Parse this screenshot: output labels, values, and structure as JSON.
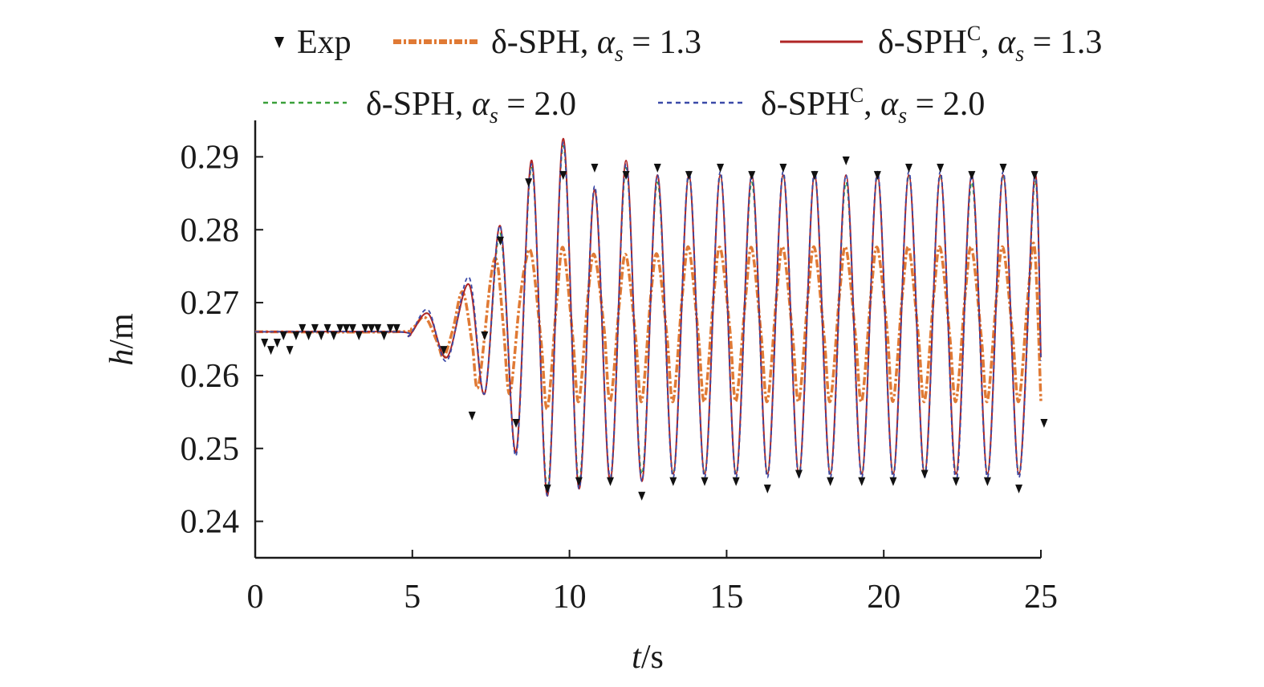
{
  "chart_data": {
    "type": "line",
    "x_axis": {
      "label_var": "t",
      "label_unit": "/s",
      "range": [
        0,
        25
      ],
      "ticks": [
        0,
        5,
        10,
        15,
        20,
        25
      ],
      "tick_labels": [
        "0",
        "5",
        "10",
        "15",
        "20",
        "25"
      ]
    },
    "y_axis": {
      "label_var": "h",
      "label_unit": "/m",
      "range": [
        0.235,
        0.295
      ],
      "ticks": [
        0.24,
        0.25,
        0.26,
        0.27,
        0.28,
        0.29
      ],
      "tick_labels": [
        "0.24",
        "0.25",
        "0.26",
        "0.27",
        "0.28",
        "0.29"
      ]
    },
    "grid": false,
    "legend_position": "top",
    "legend": [
      {
        "base": "Exp",
        "alpha": "",
        "marker": "triangle-down",
        "color": "#111111"
      },
      {
        "base": "δ-SPH",
        "alpha": "1.3",
        "style": "dash-dot",
        "color": "#e07a35"
      },
      {
        "base": "δ-SPH",
        "sup": "C",
        "alpha": "1.3",
        "style": "solid",
        "color": "#b02525"
      },
      {
        "base": "δ-SPH",
        "alpha": "2.0",
        "style": "dashed",
        "color": "#3aa03a"
      },
      {
        "base": "δ-SPH",
        "sup": "C",
        "alpha": "2.0",
        "style": "dashed",
        "color": "#3b4aa8"
      }
    ],
    "series": [
      {
        "name": "Exp",
        "kind": "markers",
        "points": [
          [
            0.3,
            0.2645
          ],
          [
            0.5,
            0.2635
          ],
          [
            0.7,
            0.2645
          ],
          [
            0.9,
            0.2655
          ],
          [
            1.1,
            0.2635
          ],
          [
            1.3,
            0.2655
          ],
          [
            1.5,
            0.2665
          ],
          [
            1.7,
            0.2655
          ],
          [
            1.9,
            0.2665
          ],
          [
            2.1,
            0.2655
          ],
          [
            2.3,
            0.2665
          ],
          [
            2.5,
            0.2655
          ],
          [
            2.7,
            0.2665
          ],
          [
            2.9,
            0.2665
          ],
          [
            3.1,
            0.2665
          ],
          [
            3.3,
            0.2655
          ],
          [
            3.5,
            0.2665
          ],
          [
            3.7,
            0.2665
          ],
          [
            3.9,
            0.2665
          ],
          [
            4.1,
            0.2655
          ],
          [
            4.3,
            0.2665
          ],
          [
            4.5,
            0.2665
          ],
          [
            6.0,
            0.2635
          ],
          [
            6.9,
            0.2545
          ],
          [
            7.3,
            0.2655
          ],
          [
            7.8,
            0.2785
          ],
          [
            8.3,
            0.2535
          ],
          [
            8.7,
            0.2865
          ],
          [
            9.3,
            0.2445
          ],
          [
            9.8,
            0.2875
          ],
          [
            10.3,
            0.2455
          ],
          [
            10.8,
            0.2885
          ],
          [
            11.3,
            0.2455
          ],
          [
            11.8,
            0.2875
          ],
          [
            12.3,
            0.2435
          ],
          [
            12.8,
            0.2885
          ],
          [
            13.3,
            0.2455
          ],
          [
            13.8,
            0.2875
          ],
          [
            14.3,
            0.2455
          ],
          [
            14.8,
            0.2885
          ],
          [
            15.3,
            0.2455
          ],
          [
            15.8,
            0.2875
          ],
          [
            16.3,
            0.2445
          ],
          [
            16.8,
            0.2885
          ],
          [
            17.3,
            0.2465
          ],
          [
            17.8,
            0.2875
          ],
          [
            18.3,
            0.2455
          ],
          [
            18.8,
            0.2895
          ],
          [
            19.3,
            0.2455
          ],
          [
            19.8,
            0.2875
          ],
          [
            20.3,
            0.2455
          ],
          [
            20.8,
            0.2885
          ],
          [
            21.3,
            0.2465
          ],
          [
            21.8,
            0.2885
          ],
          [
            22.3,
            0.2455
          ],
          [
            22.8,
            0.2875
          ],
          [
            23.3,
            0.2455
          ],
          [
            23.8,
            0.2885
          ],
          [
            24.3,
            0.2445
          ],
          [
            24.8,
            0.2875
          ],
          [
            25.1,
            0.2535
          ]
        ]
      },
      {
        "name": "δ-SPH αs=1.3",
        "kind": "line",
        "style": "dash-dot",
        "color": "#e07a35",
        "points": [
          [
            0.0,
            0.266
          ],
          [
            4.5,
            0.266
          ],
          [
            5.0,
            0.2665
          ],
          [
            5.4,
            0.268
          ],
          [
            5.8,
            0.2645
          ],
          [
            6.0,
            0.2625
          ],
          [
            6.3,
            0.2665
          ],
          [
            6.6,
            0.2715
          ],
          [
            6.9,
            0.2645
          ],
          [
            7.1,
            0.2585
          ],
          [
            7.5,
            0.2735
          ],
          [
            7.7,
            0.2755
          ],
          [
            7.9,
            0.2665
          ],
          [
            8.1,
            0.2575
          ],
          [
            8.4,
            0.2695
          ],
          [
            8.6,
            0.2755
          ],
          [
            8.8,
            0.2765
          ],
          [
            9.1,
            0.2645
          ],
          [
            9.3,
            0.2555
          ],
          [
            9.6,
            0.2705
          ],
          [
            9.8,
            0.2775
          ],
          [
            10.1,
            0.2655
          ],
          [
            10.3,
            0.2565
          ],
          [
            10.6,
            0.2715
          ],
          [
            10.8,
            0.2765
          ],
          [
            11.1,
            0.2665
          ],
          [
            11.3,
            0.2565
          ],
          [
            11.6,
            0.2705
          ],
          [
            11.8,
            0.2765
          ],
          [
            12.1,
            0.2655
          ],
          [
            12.3,
            0.2565
          ],
          [
            12.6,
            0.2715
          ],
          [
            12.8,
            0.2765
          ],
          [
            13.1,
            0.2655
          ],
          [
            13.3,
            0.2565
          ],
          [
            13.6,
            0.2715
          ],
          [
            13.8,
            0.2775
          ],
          [
            14.1,
            0.2655
          ],
          [
            14.3,
            0.2565
          ],
          [
            14.6,
            0.2715
          ],
          [
            14.8,
            0.2775
          ],
          [
            15.1,
            0.2665
          ],
          [
            15.3,
            0.2565
          ],
          [
            15.6,
            0.2705
          ],
          [
            15.8,
            0.2775
          ],
          [
            16.1,
            0.2655
          ],
          [
            16.3,
            0.2565
          ],
          [
            16.6,
            0.2715
          ],
          [
            16.8,
            0.2775
          ],
          [
            17.1,
            0.2655
          ],
          [
            17.3,
            0.2565
          ],
          [
            17.6,
            0.2715
          ],
          [
            17.8,
            0.2775
          ],
          [
            18.1,
            0.2655
          ],
          [
            18.3,
            0.2565
          ],
          [
            18.6,
            0.2715
          ],
          [
            18.8,
            0.2775
          ],
          [
            19.1,
            0.2655
          ],
          [
            19.3,
            0.2565
          ],
          [
            19.6,
            0.2715
          ],
          [
            19.8,
            0.2775
          ],
          [
            20.1,
            0.2665
          ],
          [
            20.3,
            0.2565
          ],
          [
            20.6,
            0.2715
          ],
          [
            20.8,
            0.2775
          ],
          [
            21.1,
            0.2655
          ],
          [
            21.3,
            0.2565
          ],
          [
            21.6,
            0.2715
          ],
          [
            21.8,
            0.2775
          ],
          [
            22.1,
            0.2655
          ],
          [
            22.3,
            0.2565
          ],
          [
            22.6,
            0.2715
          ],
          [
            22.8,
            0.2775
          ],
          [
            23.1,
            0.2655
          ],
          [
            23.3,
            0.2565
          ],
          [
            23.6,
            0.2715
          ],
          [
            23.8,
            0.2775
          ],
          [
            24.1,
            0.2655
          ],
          [
            24.3,
            0.2565
          ],
          [
            24.6,
            0.2715
          ],
          [
            24.8,
            0.2775
          ],
          [
            25.0,
            0.2565
          ]
        ]
      },
      {
        "name": "δ-SPHC αs=1.3",
        "kind": "line",
        "style": "solid",
        "color": "#b02525",
        "points": [
          [
            0.0,
            0.266
          ],
          [
            4.5,
            0.266
          ],
          [
            4.9,
            0.2655
          ],
          [
            5.5,
            0.2685
          ],
          [
            6.1,
            0.2625
          ],
          [
            6.8,
            0.2725
          ],
          [
            7.3,
            0.2575
          ],
          [
            7.8,
            0.2805
          ],
          [
            8.3,
            0.2495
          ],
          [
            8.8,
            0.2895
          ],
          [
            9.3,
            0.2435
          ],
          [
            9.8,
            0.2925
          ],
          [
            10.3,
            0.2445
          ],
          [
            10.8,
            0.2855
          ],
          [
            11.3,
            0.2455
          ],
          [
            11.8,
            0.2895
          ],
          [
            12.3,
            0.2455
          ],
          [
            12.8,
            0.2875
          ],
          [
            13.3,
            0.2465
          ],
          [
            13.8,
            0.2875
          ],
          [
            14.3,
            0.2465
          ],
          [
            14.8,
            0.2875
          ],
          [
            15.3,
            0.2465
          ],
          [
            15.8,
            0.2875
          ],
          [
            16.3,
            0.2465
          ],
          [
            16.8,
            0.2875
          ],
          [
            17.3,
            0.2465
          ],
          [
            17.8,
            0.2875
          ],
          [
            18.3,
            0.2465
          ],
          [
            18.8,
            0.2875
          ],
          [
            19.3,
            0.2465
          ],
          [
            19.8,
            0.2875
          ],
          [
            20.3,
            0.2465
          ],
          [
            20.8,
            0.2875
          ],
          [
            21.3,
            0.2465
          ],
          [
            21.8,
            0.2875
          ],
          [
            22.3,
            0.2465
          ],
          [
            22.8,
            0.2875
          ],
          [
            23.3,
            0.2465
          ],
          [
            23.8,
            0.2875
          ],
          [
            24.3,
            0.2465
          ],
          [
            24.8,
            0.2875
          ],
          [
            25.0,
            0.2625
          ]
        ]
      },
      {
        "name": "δ-SPH αs=2.0",
        "kind": "line",
        "style": "dashed",
        "color": "#3aa03a",
        "points": [
          [
            0.0,
            0.266
          ],
          [
            4.5,
            0.266
          ],
          [
            4.9,
            0.2655
          ],
          [
            5.5,
            0.2685
          ],
          [
            6.1,
            0.2625
          ],
          [
            6.8,
            0.2725
          ],
          [
            7.3,
            0.2575
          ],
          [
            7.8,
            0.2795
          ],
          [
            8.3,
            0.2495
          ],
          [
            8.8,
            0.2885
          ],
          [
            9.3,
            0.2445
          ],
          [
            9.8,
            0.2915
          ],
          [
            10.3,
            0.2455
          ],
          [
            10.8,
            0.2855
          ],
          [
            11.3,
            0.2455
          ],
          [
            11.8,
            0.2885
          ],
          [
            12.3,
            0.2465
          ],
          [
            12.8,
            0.2865
          ],
          [
            13.3,
            0.2465
          ],
          [
            13.8,
            0.2875
          ],
          [
            14.3,
            0.2465
          ],
          [
            14.8,
            0.2875
          ],
          [
            15.3,
            0.2465
          ],
          [
            15.8,
            0.2865
          ],
          [
            16.3,
            0.2465
          ],
          [
            16.8,
            0.2875
          ],
          [
            17.3,
            0.2465
          ],
          [
            17.8,
            0.2875
          ],
          [
            18.3,
            0.2465
          ],
          [
            18.8,
            0.2865
          ],
          [
            19.3,
            0.2465
          ],
          [
            19.8,
            0.2875
          ],
          [
            20.3,
            0.2465
          ],
          [
            20.8,
            0.2875
          ],
          [
            21.3,
            0.2465
          ],
          [
            21.8,
            0.2875
          ],
          [
            22.3,
            0.2465
          ],
          [
            22.8,
            0.2865
          ],
          [
            23.3,
            0.2465
          ],
          [
            23.8,
            0.2875
          ],
          [
            24.3,
            0.2465
          ],
          [
            24.8,
            0.2865
          ],
          [
            25.0,
            0.2625
          ]
        ]
      },
      {
        "name": "δ-SPHC αs=2.0",
        "kind": "line",
        "style": "dashed",
        "color": "#3b4aa8",
        "points": [
          [
            0.0,
            0.266
          ],
          [
            4.5,
            0.266
          ],
          [
            4.9,
            0.2655
          ],
          [
            5.5,
            0.269
          ],
          [
            6.1,
            0.262
          ],
          [
            6.8,
            0.2735
          ],
          [
            7.3,
            0.2575
          ],
          [
            7.8,
            0.2805
          ],
          [
            8.3,
            0.249
          ],
          [
            8.8,
            0.289
          ],
          [
            9.3,
            0.2435
          ],
          [
            9.8,
            0.292
          ],
          [
            10.3,
            0.2445
          ],
          [
            10.8,
            0.286
          ],
          [
            11.3,
            0.246
          ],
          [
            11.8,
            0.289
          ],
          [
            12.3,
            0.2455
          ],
          [
            12.8,
            0.2875
          ],
          [
            13.3,
            0.246
          ],
          [
            13.8,
            0.288
          ],
          [
            14.3,
            0.246
          ],
          [
            14.8,
            0.288
          ],
          [
            15.3,
            0.246
          ],
          [
            15.8,
            0.2875
          ],
          [
            16.3,
            0.246
          ],
          [
            16.8,
            0.288
          ],
          [
            17.3,
            0.246
          ],
          [
            17.8,
            0.288
          ],
          [
            18.3,
            0.246
          ],
          [
            18.8,
            0.2875
          ],
          [
            19.3,
            0.246
          ],
          [
            19.8,
            0.288
          ],
          [
            20.3,
            0.246
          ],
          [
            20.8,
            0.288
          ],
          [
            21.3,
            0.246
          ],
          [
            21.8,
            0.288
          ],
          [
            22.3,
            0.2455
          ],
          [
            22.8,
            0.2875
          ],
          [
            23.3,
            0.246
          ],
          [
            23.8,
            0.288
          ],
          [
            24.3,
            0.246
          ],
          [
            24.8,
            0.2875
          ],
          [
            25.0,
            0.262
          ]
        ]
      }
    ]
  }
}
